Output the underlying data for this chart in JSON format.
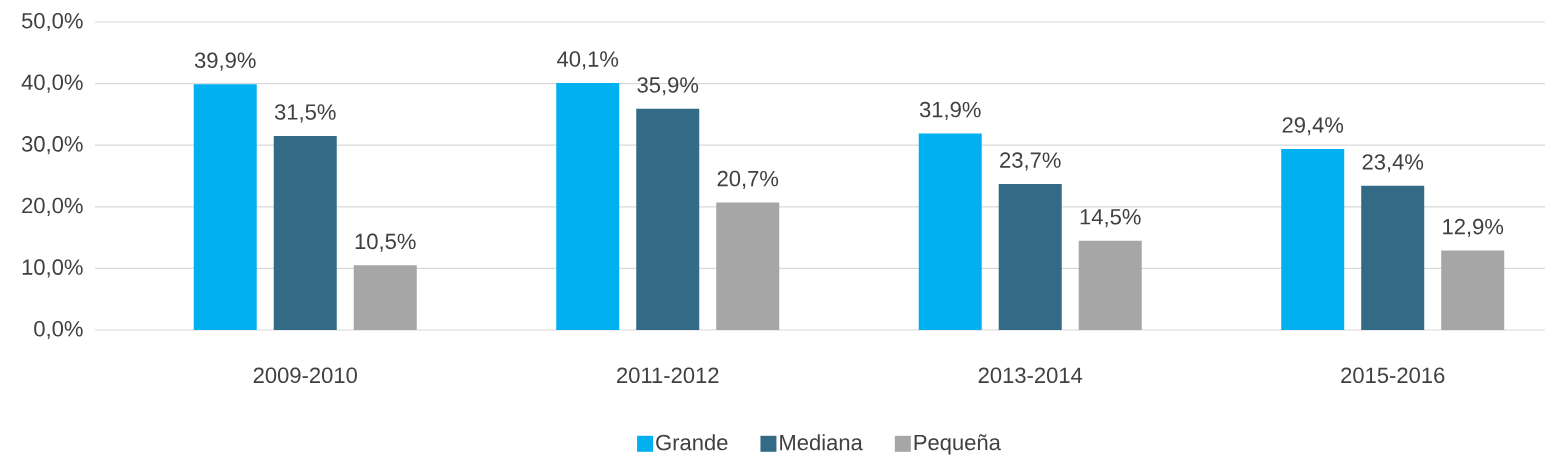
{
  "chart_data": {
    "type": "bar",
    "categories": [
      "2009-2010",
      "2011-2012",
      "2013-2014",
      "2015-2016"
    ],
    "series": [
      {
        "name": "Grande",
        "color": "#00b0f0",
        "values": [
          39.9,
          40.1,
          31.9,
          29.4
        ],
        "value_labels": [
          "39,9%",
          "40,1%",
          "31,9%",
          "29,4%"
        ]
      },
      {
        "name": "Mediana",
        "color": "#336b87",
        "values": [
          31.5,
          35.9,
          23.7,
          23.4
        ],
        "value_labels": [
          "31,5%",
          "35,9%",
          "23,7%",
          "23,4%"
        ]
      },
      {
        "name": "Pequeña",
        "color": "#a6a6a6",
        "values": [
          10.5,
          20.7,
          14.5,
          12.9
        ],
        "value_labels": [
          "10,5%",
          "20,7%",
          "14,5%",
          "12,9%"
        ]
      }
    ],
    "ylim": [
      0,
      50
    ],
    "yticks": [
      {
        "value": 0,
        "label": "0,0%"
      },
      {
        "value": 10,
        "label": "10,0%"
      },
      {
        "value": 20,
        "label": "20,0%"
      },
      {
        "value": 30,
        "label": "30,0%"
      },
      {
        "value": 40,
        "label": "40,0%"
      },
      {
        "value": 50,
        "label": "50,0%"
      }
    ],
    "grid": "y",
    "legend": "bottom"
  }
}
